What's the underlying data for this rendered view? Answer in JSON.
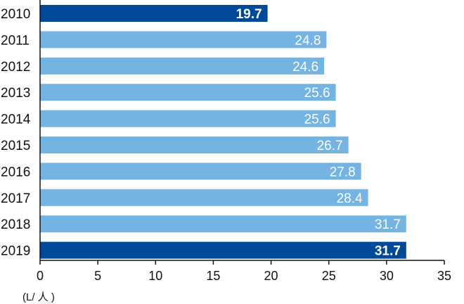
{
  "chart_data": {
    "type": "bar",
    "orientation": "horizontal",
    "categories": [
      "2010",
      "2011",
      "2012",
      "2013",
      "2014",
      "2015",
      "2016",
      "2017",
      "2018",
      "2019"
    ],
    "values": [
      19.7,
      24.8,
      24.6,
      25.6,
      25.6,
      26.7,
      27.8,
      28.4,
      31.7,
      31.7
    ],
    "value_labels": [
      "19.7",
      "24.8",
      "24.6",
      "25.6",
      "25.6",
      "26.7",
      "27.8",
      "28.4",
      "31.7",
      "31.7"
    ],
    "highlighted": [
      true,
      false,
      false,
      false,
      false,
      false,
      false,
      false,
      false,
      true
    ],
    "x_ticks": [
      "0",
      "5",
      "10",
      "15",
      "20",
      "25",
      "30",
      "35"
    ],
    "xlim": [
      0,
      35
    ],
    "unit_label": "(L/ 人 )",
    "title": "",
    "xlabel": "",
    "ylabel": "",
    "grid": false,
    "colors": {
      "highlight": "#004898",
      "normal": "#74b4e3",
      "axis": "#111111",
      "text": "#111111",
      "value_text": "#ffffff"
    }
  }
}
